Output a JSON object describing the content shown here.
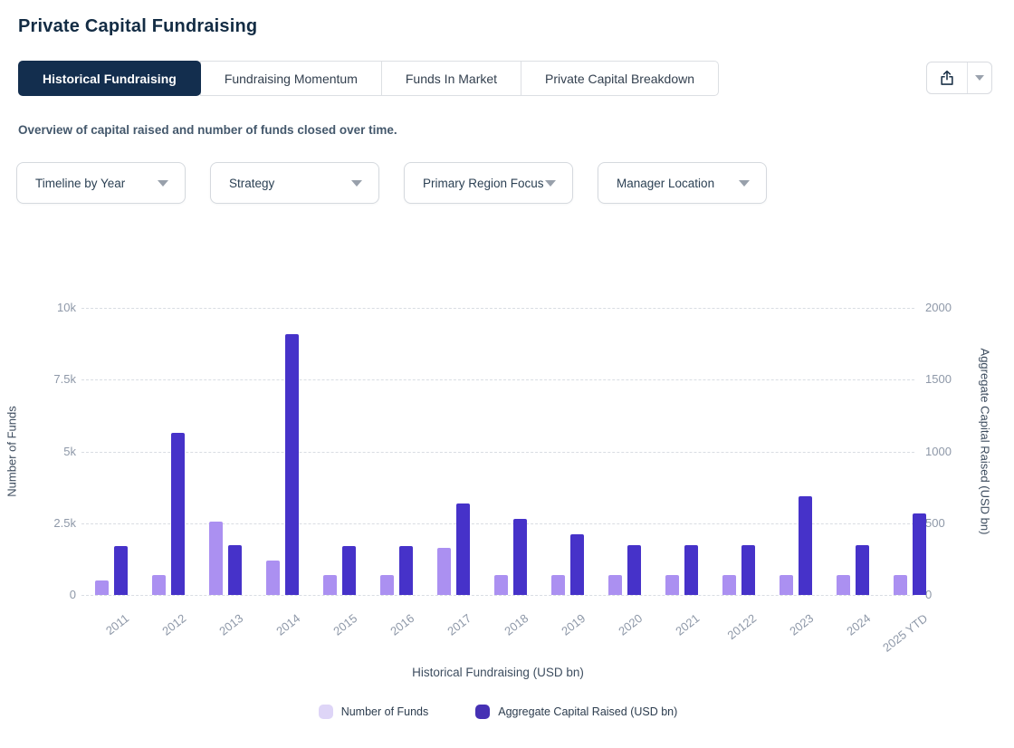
{
  "page": {
    "title": "Private Capital Fundraising",
    "subtitle": "Overview of capital raised and number of funds closed over time."
  },
  "tabs": [
    {
      "label": "Historical Fundraising",
      "active": true
    },
    {
      "label": "Fundraising Momentum",
      "active": false
    },
    {
      "label": "Funds In Market",
      "active": false
    },
    {
      "label": "Private Capital Breakdown",
      "active": false
    }
  ],
  "export": {
    "share_icon": "share-export-icon",
    "caret_icon": "chevron-down-icon"
  },
  "filters": [
    {
      "label": "Timeline by Year"
    },
    {
      "label": "Strategy"
    },
    {
      "label": "Primary Region Focus"
    },
    {
      "label": "Manager Location"
    }
  ],
  "colors": {
    "active_tab_navy": "#132e4e",
    "bar_light": "#ab90f1",
    "bar_dark": "#4632c9",
    "legend_light": "#ded5f7",
    "legend_dark": "#4631b4",
    "tick_text": "#8e98a8",
    "gridline": "#d9dde3"
  },
  "chart_data": {
    "type": "bar",
    "title": "Historical Fundraising (USD bn)",
    "xlabel": "Historical Fundraising (USD bn)",
    "categories": [
      "2011",
      "2012",
      "2013",
      "2014",
      "2015",
      "2016",
      "2017",
      "2018",
      "2019",
      "2020",
      "2021",
      "20122",
      "2023",
      "2024",
      "2025 YTD"
    ],
    "series": [
      {
        "name": "Number of Funds",
        "axis": "left",
        "color": "#ab90f1",
        "legend_color": "#ded5f7",
        "values": [
          500,
          700,
          2550,
          1200,
          700,
          700,
          1630,
          700,
          700,
          700,
          700,
          700,
          700,
          700,
          700
        ]
      },
      {
        "name": "Aggregate Capital Raised (USD bn)",
        "axis": "right",
        "color": "#4632c9",
        "legend_color": "#4631b4",
        "values": [
          340,
          1130,
          345,
          1820,
          340,
          340,
          640,
          530,
          420,
          345,
          345,
          345,
          685,
          345,
          565
        ]
      }
    ],
    "left_axis": {
      "label": "Number of Funds",
      "tick_labels": [
        "0",
        "2.5k",
        "5k",
        "7.5k",
        "10k"
      ],
      "tick_values": [
        0,
        2500,
        5000,
        7500,
        10000
      ],
      "min": 0,
      "max": 10000
    },
    "right_axis": {
      "label": "Aggregate Capital Raised (USD bn)",
      "tick_labels": [
        "0",
        "500",
        "1000",
        "1500",
        "2000"
      ],
      "tick_values": [
        0,
        500,
        1000,
        1500,
        2000
      ],
      "min": 0,
      "max": 2000
    },
    "grid": "horizontal-dashed",
    "legend_position": "bottom-center"
  }
}
